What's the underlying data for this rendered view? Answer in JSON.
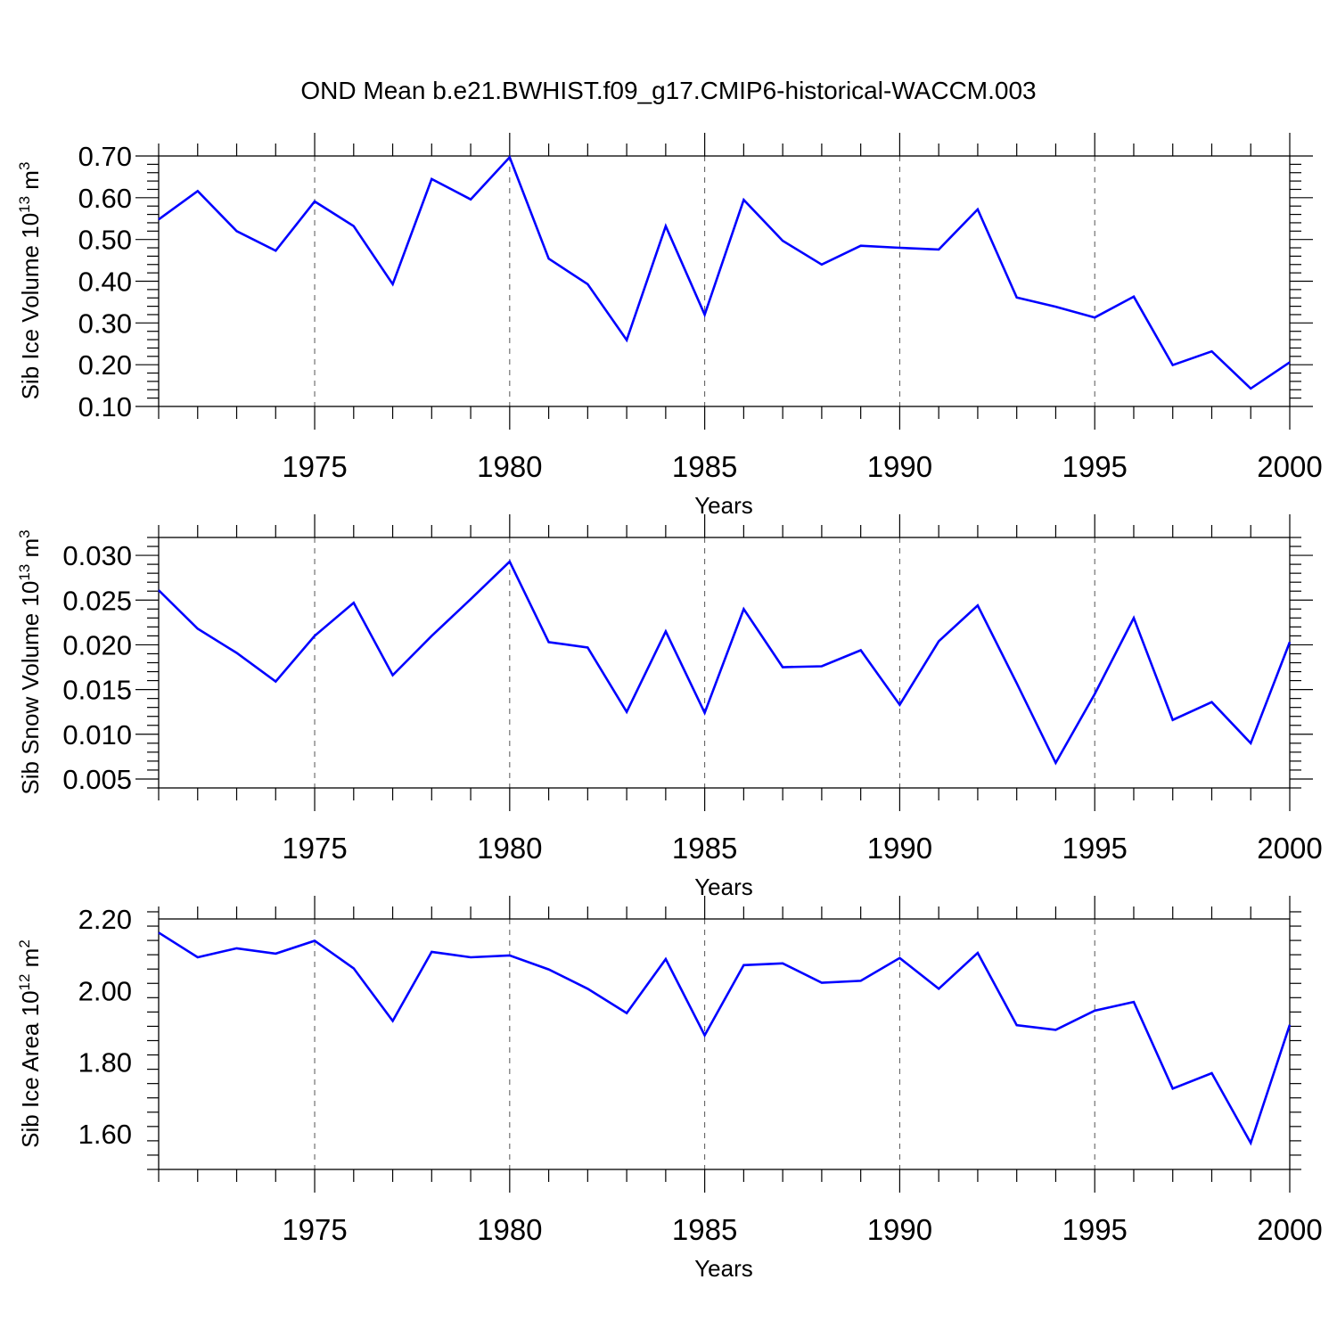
{
  "figure": {
    "title": "OND Mean b.e21.BWHIST.f09_g17.CMIP6-historical-WACCM.003"
  },
  "chart_data": [
    {
      "type": "line",
      "title": "",
      "xlabel": "Years",
      "ylabel": "Sib Ice Volume 10",
      "ylabel_exp": "13",
      "ylabel_unit": " m",
      "ylabel_unit_exp": "3",
      "xlim": [
        1971,
        2000
      ],
      "ylim": [
        0.1,
        0.7
      ],
      "yticks": [
        0.1,
        0.2,
        0.3,
        0.4,
        0.5,
        0.6,
        0.7
      ],
      "ytick_labels": [
        "0.10",
        "0.20",
        "0.30",
        "0.40",
        "0.50",
        "0.60",
        "0.70"
      ],
      "xticks": [
        1975,
        1980,
        1985,
        1990,
        1995,
        2000
      ],
      "xtick_labels": [
        "1975",
        "1980",
        "1985",
        "1990",
        "1995",
        "2000"
      ],
      "grid": "vertical dashed at major x ticks",
      "color": "#0000ff",
      "x": [
        1971,
        1972,
        1973,
        1974,
        1975,
        1976,
        1977,
        1978,
        1979,
        1980,
        1981,
        1982,
        1983,
        1984,
        1985,
        1986,
        1987,
        1988,
        1989,
        1990,
        1991,
        1992,
        1993,
        1994,
        1995,
        1996,
        1997,
        1998,
        1999,
        2000
      ],
      "values": [
        0.548,
        0.616,
        0.52,
        0.473,
        0.591,
        0.532,
        0.393,
        0.645,
        0.596,
        0.697,
        0.454,
        0.393,
        0.259,
        0.532,
        0.32,
        0.595,
        0.497,
        0.44,
        0.485,
        0.48,
        0.476,
        0.572,
        0.361,
        0.339,
        0.313,
        0.363,
        0.199,
        0.232,
        0.143,
        0.206
      ]
    },
    {
      "type": "line",
      "title": "",
      "xlabel": "Years",
      "ylabel": "Sib Snow Volume 10",
      "ylabel_exp": "13",
      "ylabel_unit": " m",
      "ylabel_unit_exp": "3",
      "xlim": [
        1971,
        2000
      ],
      "ylim": [
        0.004,
        0.032
      ],
      "yticks": [
        0.005,
        0.01,
        0.015,
        0.02,
        0.025,
        0.03
      ],
      "ytick_labels": [
        "0.005",
        "0.010",
        "0.015",
        "0.020",
        "0.025",
        "0.030"
      ],
      "xticks": [
        1975,
        1980,
        1985,
        1990,
        1995,
        2000
      ],
      "xtick_labels": [
        "1975",
        "1980",
        "1985",
        "1990",
        "1995",
        "2000"
      ],
      "grid": "vertical dashed at major x ticks",
      "color": "#0000ff",
      "x": [
        1971,
        1972,
        1973,
        1974,
        1975,
        1976,
        1977,
        1978,
        1979,
        1980,
        1981,
        1982,
        1983,
        1984,
        1985,
        1986,
        1987,
        1988,
        1989,
        1990,
        1991,
        1992,
        1993,
        1994,
        1995,
        1996,
        1997,
        1998,
        1999,
        2000
      ],
      "values": [
        0.0261,
        0.0218,
        0.0191,
        0.0159,
        0.021,
        0.0247,
        0.0166,
        0.021,
        0.0251,
        0.0293,
        0.0203,
        0.0197,
        0.0125,
        0.0215,
        0.0124,
        0.024,
        0.0175,
        0.0176,
        0.0194,
        0.0133,
        0.0204,
        0.0244,
        0.0157,
        0.0068,
        0.0145,
        0.023,
        0.0116,
        0.0136,
        0.009,
        0.0203
      ]
    },
    {
      "type": "line",
      "title": "",
      "xlabel": "Years",
      "ylabel": "Sib Ice Area 10",
      "ylabel_exp": "12",
      "ylabel_unit": " m",
      "ylabel_unit_exp": "2",
      "xlim": [
        1971,
        2000
      ],
      "ylim": [
        1.5,
        2.2
      ],
      "yticks": [
        1.6,
        1.8,
        2.0,
        2.2
      ],
      "ytick_labels": [
        "1.60",
        "1.80",
        "2.00",
        "2.20"
      ],
      "xticks": [
        1975,
        1980,
        1985,
        1990,
        1995,
        2000
      ],
      "xtick_labels": [
        "1975",
        "1980",
        "1985",
        "1990",
        "1995",
        "2000"
      ],
      "grid": "vertical dashed at major x ticks",
      "color": "#0000ff",
      "x": [
        1971,
        1972,
        1973,
        1974,
        1975,
        1976,
        1977,
        1978,
        1979,
        1980,
        1981,
        1982,
        1983,
        1984,
        1985,
        1986,
        1987,
        1988,
        1989,
        1990,
        1991,
        1992,
        1993,
        1994,
        1995,
        1996,
        1997,
        1998,
        1999,
        2000
      ],
      "values": [
        2.162,
        2.093,
        2.118,
        2.103,
        2.139,
        2.062,
        1.915,
        2.108,
        2.093,
        2.098,
        2.059,
        2.005,
        1.937,
        2.088,
        1.875,
        2.071,
        2.076,
        2.022,
        2.027,
        2.091,
        2.005,
        2.105,
        1.903,
        1.89,
        1.944,
        1.968,
        1.726,
        1.769,
        1.574,
        1.904
      ]
    }
  ]
}
